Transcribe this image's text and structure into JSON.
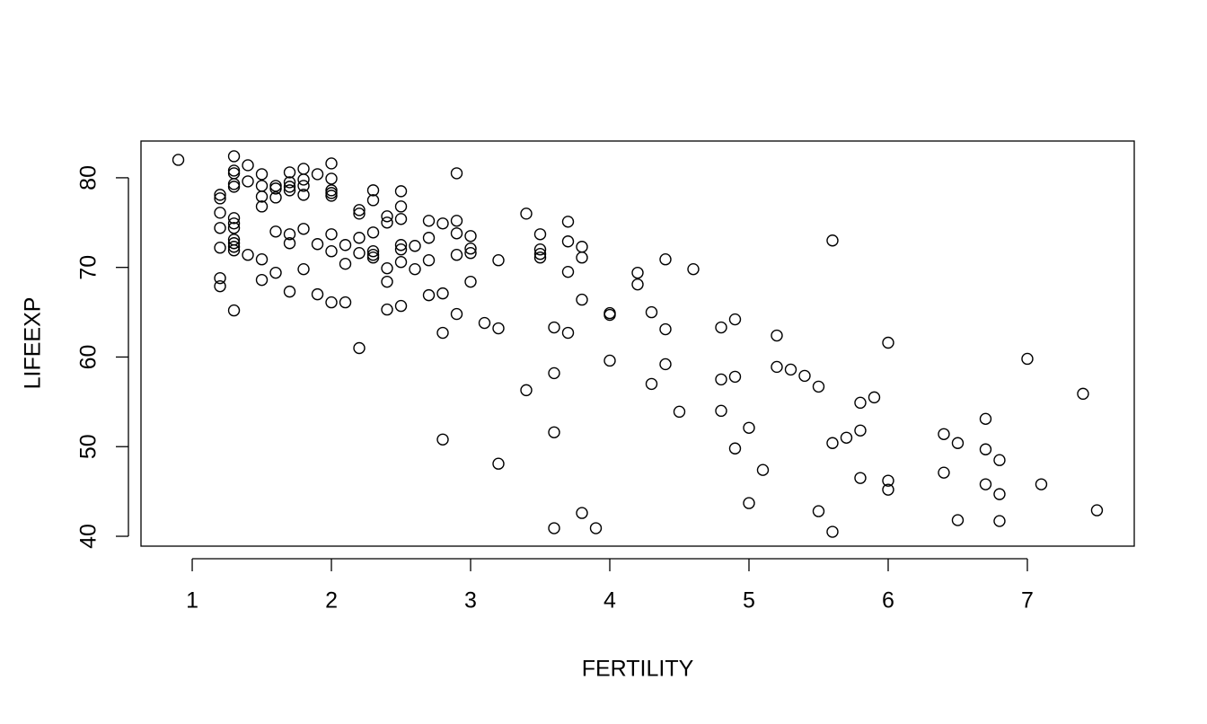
{
  "chart_data": {
    "type": "scatter",
    "x_label": "FERTILITY",
    "y_label": "LIFEEXP",
    "color": "#000000",
    "xlim": [
      0.632,
      7.768
    ],
    "ylim": [
      38.9,
      84.1
    ],
    "xticks": [
      1,
      2,
      3,
      4,
      5,
      6,
      7
    ],
    "yticks": [
      40,
      50,
      60,
      70,
      80
    ],
    "x": [
      0.9,
      1.3,
      1.3,
      1.3,
      1.3,
      1.3,
      1.4,
      1.4,
      1.5,
      1.5,
      1.5,
      1.5,
      1.6,
      1.6,
      1.6,
      1.7,
      1.7,
      1.7,
      1.7,
      1.8,
      1.8,
      1.8,
      1.8,
      1.9,
      2.0,
      2.0,
      2.0,
      2.0,
      2.0,
      1.2,
      1.2,
      1.2,
      1.2,
      1.2,
      1.2,
      1.2,
      1.3,
      1.3,
      1.3,
      1.3,
      1.3,
      1.3,
      1.3,
      1.3,
      1.4,
      1.5,
      1.5,
      1.6,
      1.6,
      1.7,
      1.7,
      1.7,
      1.8,
      1.8,
      1.9,
      1.9,
      2.0,
      2.0,
      2.0,
      2.1,
      2.1,
      2.1,
      2.2,
      2.2,
      2.2,
      2.2,
      2.2,
      2.3,
      2.3,
      2.3,
      2.3,
      2.3,
      2.3,
      2.4,
      2.4,
      2.4,
      2.4,
      2.4,
      2.5,
      2.5,
      2.5,
      2.5,
      2.5,
      2.5,
      2.5,
      2.6,
      2.6,
      2.7,
      2.7,
      2.7,
      2.7,
      2.8,
      2.8,
      2.8,
      2.8,
      2.9,
      2.9,
      2.9,
      2.9,
      2.9,
      3.0,
      3.0,
      3.0,
      3.0,
      3.1,
      3.2,
      3.2,
      3.2,
      3.4,
      3.4,
      3.5,
      3.5,
      3.5,
      3.5,
      3.6,
      3.6,
      3.6,
      3.6,
      3.7,
      3.7,
      3.7,
      3.7,
      3.8,
      3.8,
      3.8,
      3.8,
      3.9,
      4.0,
      4.0,
      4.0,
      4.2,
      4.2,
      4.3,
      4.3,
      4.4,
      4.4,
      4.4,
      4.5,
      4.6,
      4.8,
      4.8,
      4.8,
      4.9,
      4.9,
      4.9,
      5.0,
      5.0,
      5.1,
      5.2,
      5.2,
      5.3,
      5.4,
      5.5,
      5.5,
      5.6,
      5.6,
      5.6,
      5.7,
      5.8,
      5.8,
      5.8,
      5.9,
      6.0,
      6.0,
      6.0,
      6.4,
      6.4,
      6.5,
      6.5,
      6.7,
      6.7,
      6.7,
      6.8,
      6.8,
      6.8,
      7.0,
      7.1,
      7.4,
      7.5
    ],
    "y": [
      82.0,
      82.4,
      80.8,
      80.5,
      79.3,
      79.0,
      81.4,
      79.6,
      80.4,
      79.1,
      77.9,
      76.8,
      79.1,
      78.8,
      77.8,
      80.6,
      79.5,
      79.0,
      78.6,
      81.0,
      79.8,
      79.1,
      78.1,
      80.4,
      81.6,
      79.9,
      78.6,
      78.3,
      78.0,
      78.1,
      77.7,
      76.1,
      74.4,
      72.2,
      68.8,
      67.9,
      75.5,
      74.9,
      74.4,
      73.1,
      72.7,
      72.3,
      71.9,
      65.2,
      71.4,
      70.9,
      68.6,
      74.0,
      69.4,
      73.7,
      72.7,
      67.3,
      74.3,
      69.8,
      72.6,
      67.0,
      73.7,
      71.8,
      66.1,
      72.5,
      70.4,
      66.1,
      76.4,
      76.0,
      73.3,
      71.6,
      61.0,
      78.6,
      77.5,
      73.9,
      71.8,
      71.4,
      71.1,
      75.7,
      75.0,
      69.9,
      68.4,
      65.3,
      78.5,
      76.8,
      75.4,
      72.5,
      72.0,
      70.6,
      65.7,
      72.4,
      69.8,
      75.2,
      73.3,
      70.8,
      66.9,
      74.9,
      67.1,
      62.7,
      50.8,
      80.5,
      75.2,
      73.8,
      71.4,
      64.8,
      73.5,
      72.1,
      71.6,
      68.4,
      63.8,
      70.8,
      63.2,
      48.1,
      76.0,
      56.3,
      73.7,
      72.0,
      71.5,
      71.1,
      63.3,
      58.2,
      51.6,
      40.9,
      75.1,
      72.9,
      69.5,
      62.7,
      72.3,
      71.1,
      66.4,
      42.6,
      40.9,
      64.9,
      64.7,
      59.6,
      69.4,
      68.1,
      65.0,
      57.0,
      70.9,
      63.1,
      59.2,
      53.9,
      69.8,
      63.3,
      57.5,
      54.0,
      64.2,
      57.8,
      49.8,
      52.1,
      43.7,
      47.4,
      62.4,
      58.9,
      58.6,
      57.9,
      56.7,
      42.8,
      73.0,
      50.4,
      40.5,
      51.0,
      54.9,
      51.8,
      46.5,
      55.5,
      61.6,
      46.2,
      45.2,
      51.4,
      47.1,
      50.4,
      41.8,
      53.1,
      49.7,
      45.8,
      48.5,
      44.7,
      41.7,
      59.8,
      45.8,
      55.9,
      42.9
    ]
  }
}
